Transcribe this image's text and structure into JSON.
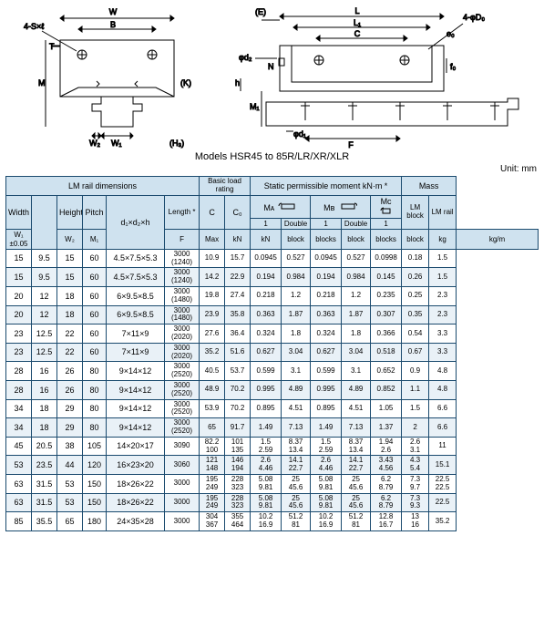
{
  "caption": "Models HSR45 to 85R/LR/XR/XLR",
  "unit": "Unit: mm",
  "schematic": {
    "left": {
      "labels": [
        "W",
        "B",
        "4-S×ℓ",
        "T",
        "M",
        "(K)",
        "W₂",
        "W₁",
        "(H₃)"
      ]
    },
    "right": {
      "labels": [
        "(E)",
        "L",
        "L₁",
        "C",
        "4-φD₀",
        "e₀",
        "φd₂",
        "N",
        "h",
        "M₁",
        "φd₁",
        "F",
        "f₀"
      ]
    }
  },
  "header": {
    "groups": {
      "rail": "LM rail dimensions",
      "basic": "Basic load rating",
      "static": "Static permissible moment kN·m *",
      "mass": "Mass"
    },
    "rail_cols": {
      "width": "Width",
      "w1": "W₁",
      "w1_tol": "±0.05",
      "w2": "W₂",
      "height": "Height",
      "m1": "M₁",
      "pitch": "Pitch",
      "f": "F",
      "d": "d₁×d₂×h",
      "length": "Length *",
      "max": "Max"
    },
    "basic_cols": {
      "c": "C",
      "c0": "C₀",
      "kn": "kN"
    },
    "moment_cols": {
      "ma": "Mᴀ",
      "mb": "Mʙ",
      "mc": "Mᴄ",
      "b1": "1",
      "b2": "Double",
      "block": "block",
      "blocks": "blocks"
    },
    "mass_cols": {
      "lm_block": "LM block",
      "lm_rail": "LM rail",
      "kg": "kg",
      "kgm": "kg/m"
    }
  },
  "rows": [
    {
      "w1": "15",
      "w2": "9.5",
      "m1": "15",
      "f": "60",
      "d": "4.5×7.5×5.3",
      "len": "3000\n(1240)",
      "c": "10.9",
      "c0": "15.7",
      "ma1": "0.0945",
      "ma2": "0.527",
      "mb1": "0.0945",
      "mb2": "0.527",
      "mc": "0.0998",
      "mblk": "0.18",
      "mrail": "1.5",
      "alt": false
    },
    {
      "w1": "15",
      "w2": "9.5",
      "m1": "15",
      "f": "60",
      "d": "4.5×7.5×5.3",
      "len": "3000\n(1240)",
      "c": "14.2",
      "c0": "22.9",
      "ma1": "0.194",
      "ma2": "0.984",
      "mb1": "0.194",
      "mb2": "0.984",
      "mc": "0.145",
      "mblk": "0.26",
      "mrail": "1.5",
      "alt": true
    },
    {
      "w1": "20",
      "w2": "12",
      "m1": "18",
      "f": "60",
      "d": "6×9.5×8.5",
      "len": "3000\n(1480)",
      "c": "19.8",
      "c0": "27.4",
      "ma1": "0.218",
      "ma2": "1.2",
      "mb1": "0.218",
      "mb2": "1.2",
      "mc": "0.235",
      "mblk": "0.25",
      "mrail": "2.3",
      "alt": false
    },
    {
      "w1": "20",
      "w2": "12",
      "m1": "18",
      "f": "60",
      "d": "6×9.5×8.5",
      "len": "3000\n(1480)",
      "c": "23.9",
      "c0": "35.8",
      "ma1": "0.363",
      "ma2": "1.87",
      "mb1": "0.363",
      "mb2": "1.87",
      "mc": "0.307",
      "mblk": "0.35",
      "mrail": "2.3",
      "alt": true
    },
    {
      "w1": "23",
      "w2": "12.5",
      "m1": "22",
      "f": "60",
      "d": "7×11×9",
      "len": "3000\n(2020)",
      "c": "27.6",
      "c0": "36.4",
      "ma1": "0.324",
      "ma2": "1.8",
      "mb1": "0.324",
      "mb2": "1.8",
      "mc": "0.366",
      "mblk": "0.54",
      "mrail": "3.3",
      "alt": false
    },
    {
      "w1": "23",
      "w2": "12.5",
      "m1": "22",
      "f": "60",
      "d": "7×11×9",
      "len": "3000\n(2020)",
      "c": "35.2",
      "c0": "51.6",
      "ma1": "0.627",
      "ma2": "3.04",
      "mb1": "0.627",
      "mb2": "3.04",
      "mc": "0.518",
      "mblk": "0.67",
      "mrail": "3.3",
      "alt": true
    },
    {
      "w1": "28",
      "w2": "16",
      "m1": "26",
      "f": "80",
      "d": "9×14×12",
      "len": "3000\n(2520)",
      "c": "40.5",
      "c0": "53.7",
      "ma1": "0.599",
      "ma2": "3.1",
      "mb1": "0.599",
      "mb2": "3.1",
      "mc": "0.652",
      "mblk": "0.9",
      "mrail": "4.8",
      "alt": false
    },
    {
      "w1": "28",
      "w2": "16",
      "m1": "26",
      "f": "80",
      "d": "9×14×12",
      "len": "3000\n(2520)",
      "c": "48.9",
      "c0": "70.2",
      "ma1": "0.995",
      "ma2": "4.89",
      "mb1": "0.995",
      "mb2": "4.89",
      "mc": "0.852",
      "mblk": "1.1",
      "mrail": "4.8",
      "alt": true
    },
    {
      "w1": "34",
      "w2": "18",
      "m1": "29",
      "f": "80",
      "d": "9×14×12",
      "len": "3000\n(2520)",
      "c": "53.9",
      "c0": "70.2",
      "ma1": "0.895",
      "ma2": "4.51",
      "mb1": "0.895",
      "mb2": "4.51",
      "mc": "1.05",
      "mblk": "1.5",
      "mrail": "6.6",
      "alt": false
    },
    {
      "w1": "34",
      "w2": "18",
      "m1": "29",
      "f": "80",
      "d": "9×14×12",
      "len": "3000\n(2520)",
      "c": "65",
      "c0": "91.7",
      "ma1": "1.49",
      "ma2": "7.13",
      "mb1": "1.49",
      "mb2": "7.13",
      "mc": "1.37",
      "mblk": "2",
      "mrail": "6.6",
      "alt": true
    },
    {
      "w1": "45",
      "w2": "20.5",
      "m1": "38",
      "f": "105",
      "d": "14×20×17",
      "len": "3090",
      "c": "82.2\n100",
      "c0": "101\n135",
      "ma1": "1.5\n2.59",
      "ma2": "8.37\n13.4",
      "mb1": "1.5\n2.59",
      "mb2": "8.37\n13.4",
      "mc": "1.94\n2.6",
      "mblk": "2.6\n3.1",
      "mrail": "11",
      "alt": false
    },
    {
      "w1": "53",
      "w2": "23.5",
      "m1": "44",
      "f": "120",
      "d": "16×23×20",
      "len": "3060",
      "c": "121\n148",
      "c0": "146\n194",
      "ma1": "2.6\n4.46",
      "ma2": "14.1\n22.7",
      "mb1": "2.6\n4.46",
      "mb2": "14.1\n22.7",
      "mc": "3.43\n4.56",
      "mblk": "4.3\n5.4",
      "mrail": "15.1",
      "alt": true
    },
    {
      "w1": "63",
      "w2": "31.5",
      "m1": "53",
      "f": "150",
      "d": "18×26×22",
      "len": "3000",
      "c": "195\n249",
      "c0": "228\n323",
      "ma1": "5.08\n9.81",
      "ma2": "25\n45.6",
      "mb1": "5.08\n9.81",
      "mb2": "25\n45.6",
      "mc": "6.2\n8.79",
      "mblk": "7.3\n9.7",
      "mrail": "22.5\n22.5",
      "alt": false
    },
    {
      "w1": "63",
      "w2": "31.5",
      "m1": "53",
      "f": "150",
      "d": "18×26×22",
      "len": "3000",
      "c": "195\n249",
      "c0": "228\n323",
      "ma1": "5.08\n9.81",
      "ma2": "25\n45.6",
      "mb1": "5.08\n9.81",
      "mb2": "25\n45.6",
      "mc": "6.2\n8.79",
      "mblk": "7.3\n9.3",
      "mrail": "22.5",
      "alt": true
    },
    {
      "w1": "85",
      "w2": "35.5",
      "m1": "65",
      "f": "180",
      "d": "24×35×28",
      "len": "3000",
      "c": "304\n367",
      "c0": "355\n464",
      "ma1": "10.2\n16.9",
      "ma2": "51.2\n81",
      "mb1": "10.2\n16.9",
      "mb2": "51.2\n81",
      "mc": "12.8\n16.7",
      "mblk": "13\n16",
      "mrail": "35.2",
      "alt": false
    }
  ],
  "colors": {
    "border": "#1a4a6e",
    "head_bg": "#cfe2ef",
    "alt_bg": "#e9f1f7",
    "row_bg": "#ffffff",
    "text": "#222"
  }
}
